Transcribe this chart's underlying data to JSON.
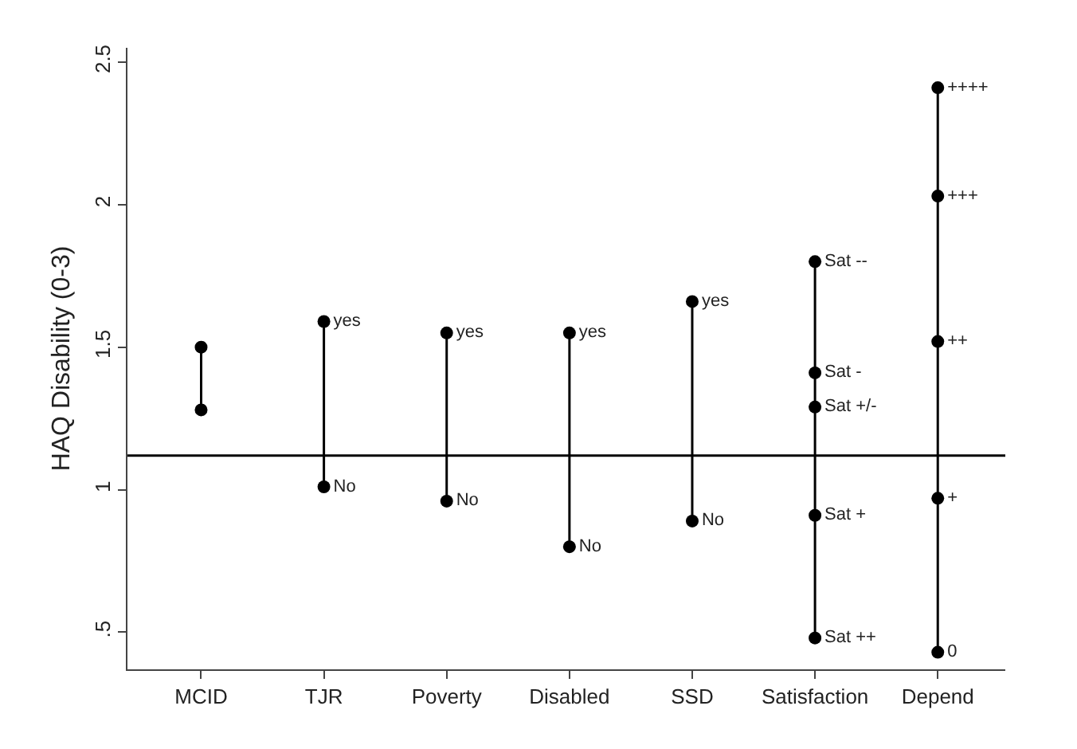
{
  "chart_data": {
    "type": "line",
    "ylabel": "HAQ Disability (0-3)",
    "categories": [
      "MCID",
      "TJR",
      "Poverty",
      "Disabled",
      "SSD",
      "Satisfaction",
      "Depend"
    ],
    "ylim": [
      0.37,
      2.55
    ],
    "yticks": [
      {
        "value": 0.5,
        "label": ".5"
      },
      1,
      1.5,
      2,
      2.5
    ],
    "marker": "circle",
    "line_style": "solid",
    "ref_lines": [
      {
        "axis": "y",
        "value": 1.12,
        "color": "#000000"
      }
    ],
    "series": [
      {
        "color": "#000000",
        "x": [
          "MCID",
          "MCID"
        ],
        "values": [
          1.5,
          1.28
        ]
      },
      {
        "color": "#000000",
        "x": [
          "TJR",
          "TJR"
        ],
        "values": [
          1.59,
          1.01
        ],
        "value_labels": [
          "yes",
          "No"
        ]
      },
      {
        "color": "#000000",
        "x": [
          "Poverty",
          "Poverty"
        ],
        "values": [
          1.55,
          0.96
        ],
        "value_labels": [
          "yes",
          "No"
        ]
      },
      {
        "color": "#000000",
        "x": [
          "Disabled",
          "Disabled"
        ],
        "values": [
          1.55,
          0.8
        ],
        "value_labels": [
          "yes",
          "No"
        ]
      },
      {
        "color": "#000000",
        "x": [
          "SSD",
          "SSD"
        ],
        "values": [
          1.66,
          0.89
        ],
        "value_labels": [
          "yes",
          "No"
        ]
      },
      {
        "color": "#000000",
        "x": [
          "Satisfaction",
          "Satisfaction",
          "Satisfaction",
          "Satisfaction",
          "Satisfaction"
        ],
        "values": [
          1.8,
          1.41,
          1.29,
          0.91,
          0.48
        ],
        "value_labels": [
          "Sat --",
          "Sat -",
          "Sat +/-",
          "Sat +",
          "Sat ++"
        ]
      },
      {
        "color": "#000000",
        "x": [
          "Depend",
          "Depend",
          "Depend",
          "Depend",
          "Depend"
        ],
        "values": [
          2.41,
          2.03,
          1.52,
          0.97,
          0.43
        ],
        "value_labels": [
          "++++",
          "+++",
          "++",
          "+",
          "0"
        ]
      }
    ]
  }
}
